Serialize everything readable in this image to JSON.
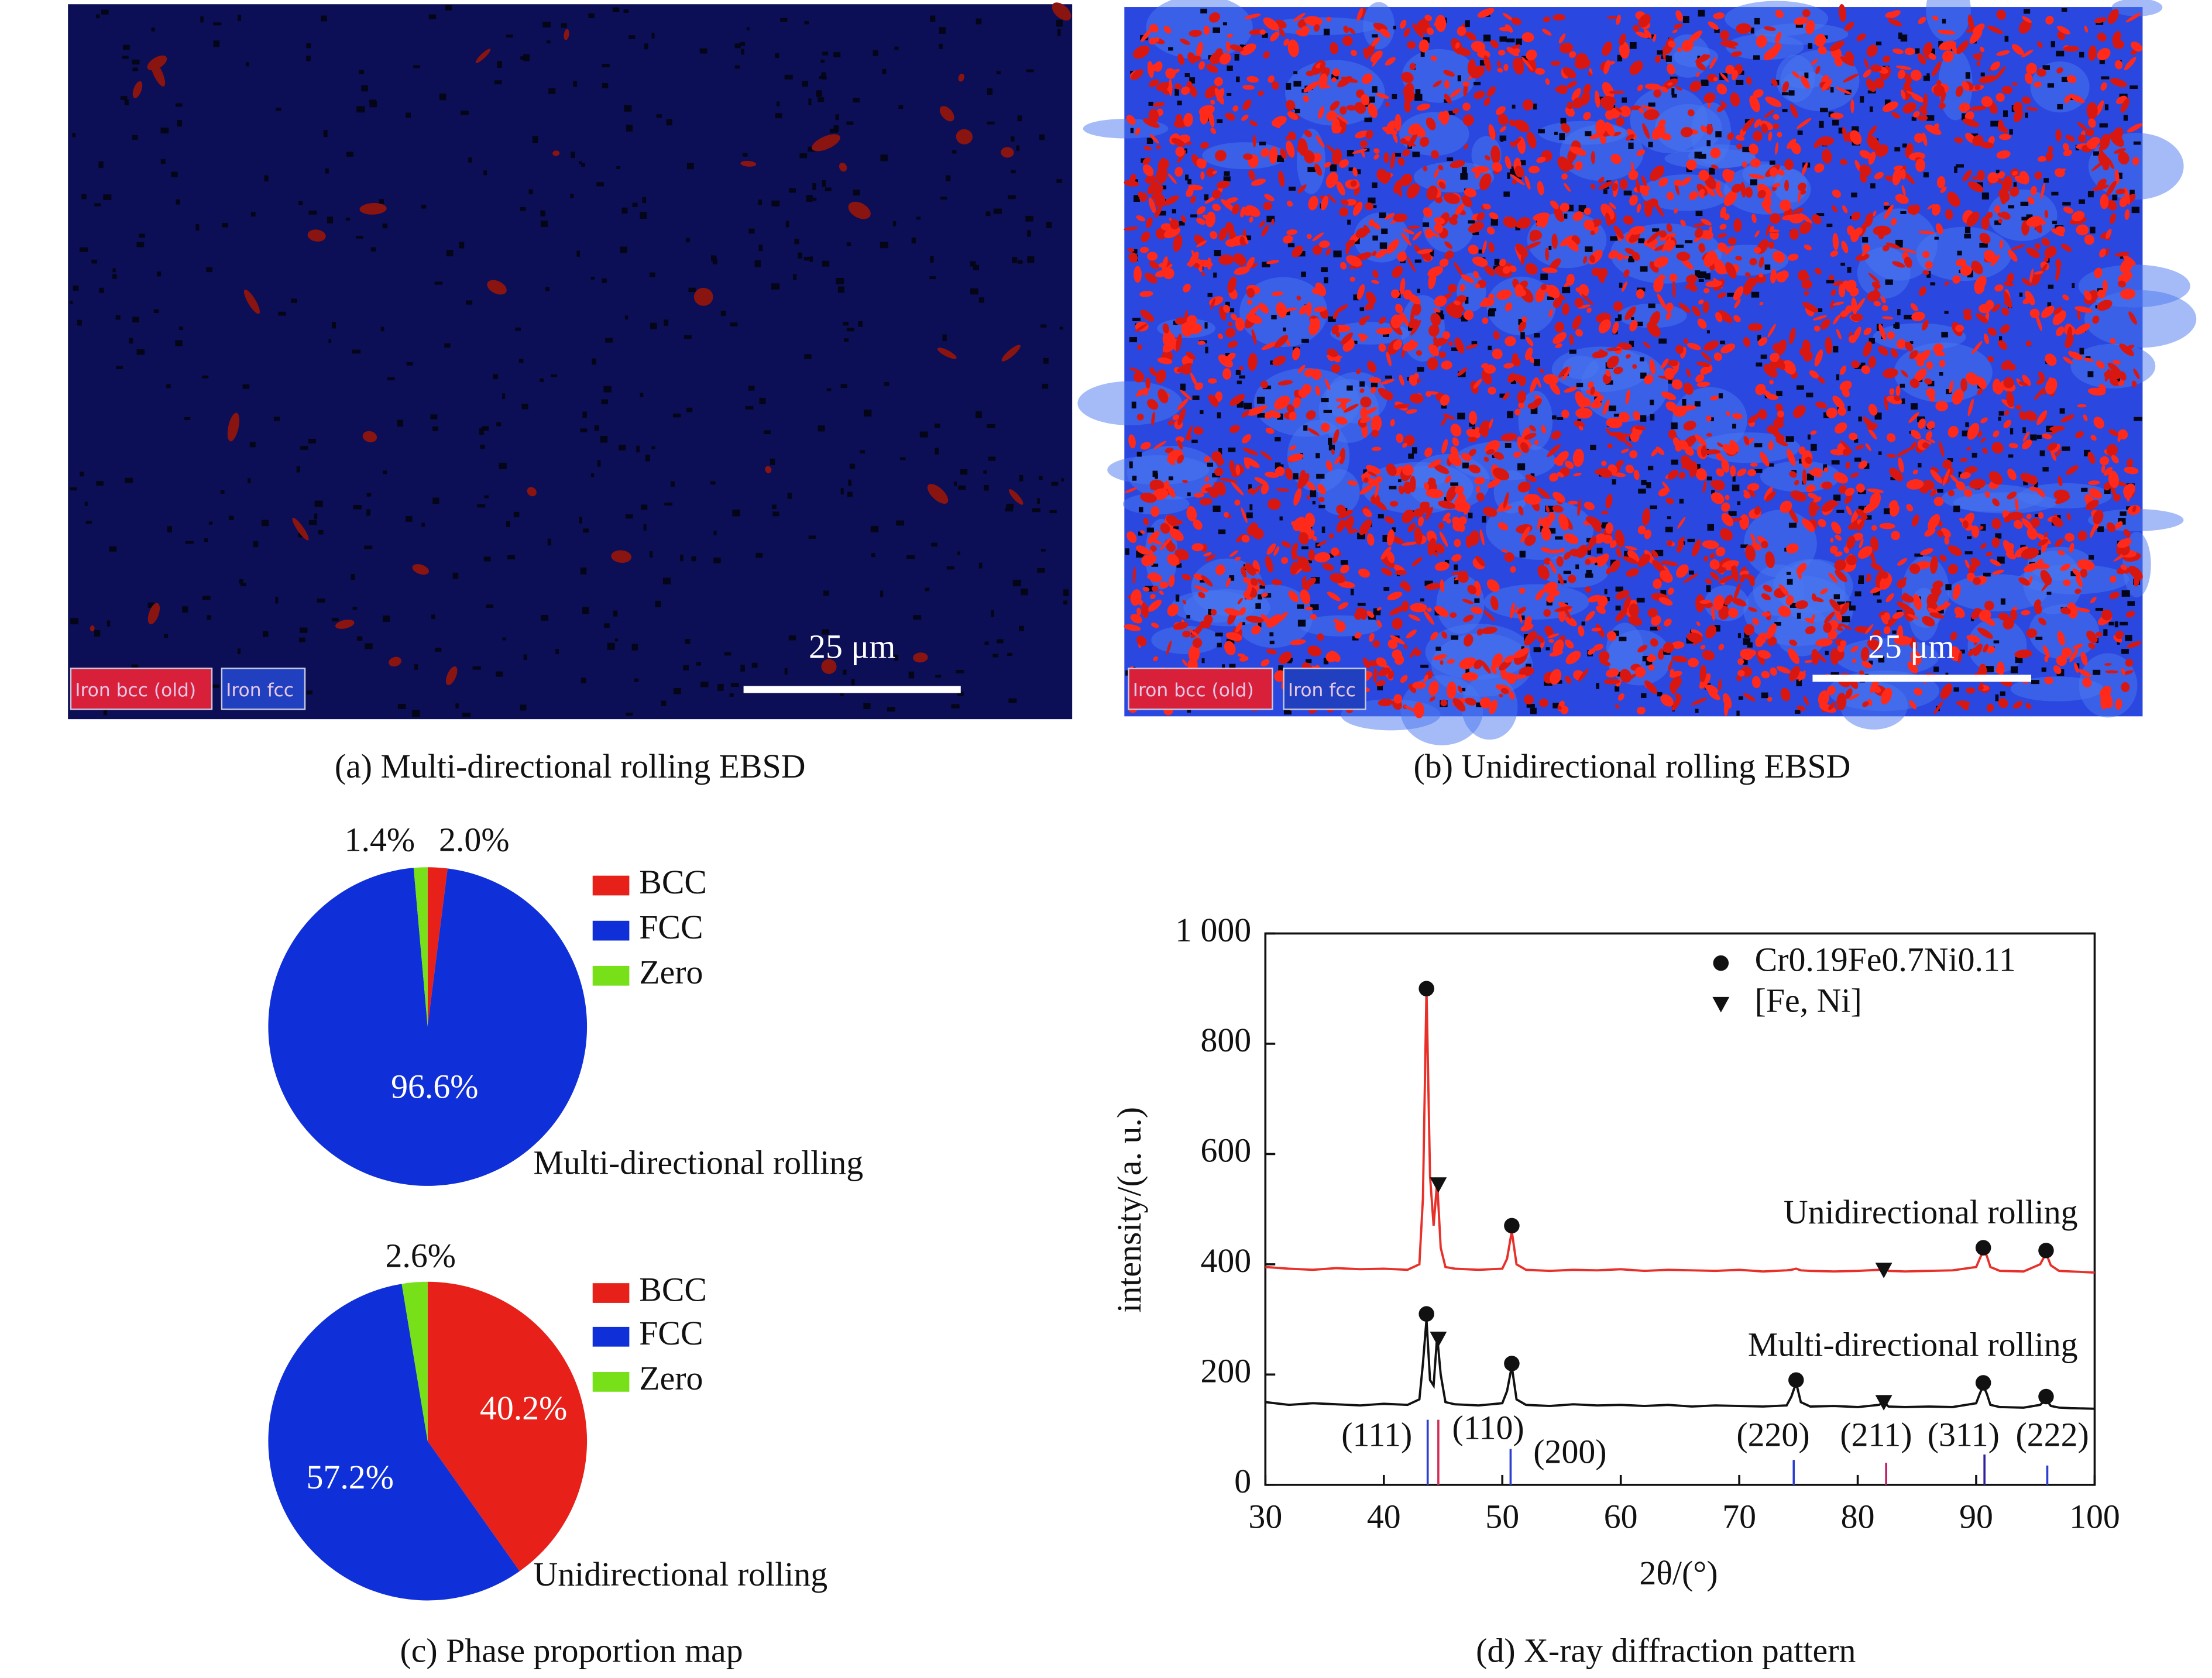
{
  "ebsd": [
    {
      "caption": "(a) Multi-directional rolling EBSD",
      "scale_bar": "25 μm",
      "legend": [
        "Iron bcc (old)",
        "Iron fcc"
      ]
    },
    {
      "caption": "(b) Unidirectional rolling EBSD",
      "scale_bar": "25 μm",
      "legend": [
        "Iron bcc (old)",
        "Iron fcc"
      ]
    }
  ],
  "phase_caption": "(c) Phase proportion map",
  "chart_data": [
    {
      "type": "pie",
      "title": "Multi-directional rolling",
      "categories": [
        "BCC",
        "FCC",
        "Zero"
      ],
      "values": [
        2.0,
        96.6,
        1.4
      ],
      "value_labels": [
        "2.0%",
        "96.6%",
        "1.4%"
      ],
      "colors": [
        "#e8201a",
        "#0f2fd8",
        "#77e019"
      ]
    },
    {
      "type": "pie",
      "title": "Unidirectional rolling",
      "categories": [
        "BCC",
        "FCC",
        "Zero"
      ],
      "values": [
        40.2,
        57.2,
        2.6
      ],
      "value_labels": [
        "40.2%",
        "57.2%",
        "2.6%"
      ],
      "colors": [
        "#e8201a",
        "#0f2fd8",
        "#77e019"
      ]
    },
    {
      "type": "line",
      "caption": "(d) X-ray diffraction pattern",
      "xlabel": "2θ/(°)",
      "ylabel": "intensity/(a. u.)",
      "xlim": [
        30,
        100
      ],
      "ylim": [
        0,
        1000
      ],
      "xticks": [
        30,
        40,
        50,
        60,
        70,
        80,
        90,
        100
      ],
      "yticks": [
        0,
        200,
        400,
        600,
        800,
        {
          "value": 1000,
          "label": "1 000"
        }
      ],
      "x": [
        30,
        32,
        34,
        36,
        38,
        40,
        42,
        43.0,
        43.3,
        43.6,
        43.9,
        44.2,
        44.5,
        44.8,
        45.2,
        46,
        48,
        50,
        50.4,
        50.8,
        51.2,
        52,
        54,
        56,
        58,
        60,
        62,
        64,
        66,
        68,
        70,
        72,
        74,
        74.4,
        74.8,
        75.2,
        76,
        78,
        80,
        81.8,
        82.2,
        82.6,
        84,
        86,
        88,
        90,
        90.3,
        90.6,
        90.9,
        91.2,
        92,
        94,
        95.4,
        95.9,
        96.3,
        97,
        98,
        100
      ],
      "series": [
        {
          "name": "Unidirectional rolling",
          "color": "#e8302a",
          "values": [
            395,
            392,
            390,
            393,
            391,
            392,
            390,
            400,
            520,
            900,
            560,
            470,
            550,
            430,
            395,
            392,
            390,
            392,
            410,
            460,
            400,
            390,
            388,
            390,
            389,
            391,
            388,
            390,
            389,
            388,
            390,
            387,
            389,
            390,
            392,
            389,
            388,
            387,
            388,
            390,
            395,
            388,
            387,
            388,
            389,
            395,
            410,
            425,
            415,
            395,
            388,
            387,
            400,
            420,
            398,
            388,
            387,
            385
          ]
        },
        {
          "name": "Multi-directional rolling",
          "color": "#111111",
          "values": [
            150,
            145,
            148,
            146,
            144,
            147,
            145,
            155,
            220,
            300,
            190,
            180,
            270,
            200,
            150,
            146,
            144,
            148,
            170,
            215,
            155,
            145,
            143,
            146,
            144,
            145,
            143,
            145,
            142,
            144,
            143,
            142,
            144,
            160,
            185,
            150,
            142,
            143,
            141,
            145,
            150,
            142,
            141,
            142,
            141,
            148,
            165,
            180,
            165,
            145,
            141,
            140,
            145,
            155,
            143,
            140,
            139,
            138
          ]
        }
      ],
      "markers": [
        {
          "name": "Cr0.19Fe0.7Ni0.11",
          "shape": "circle",
          "x": [
            43.6,
            50.8,
            90.6,
            95.9,
            43.6,
            50.8,
            74.8,
            90.6,
            95.9
          ],
          "y": [
            900,
            470,
            430,
            425,
            310,
            220,
            190,
            185,
            160
          ]
        },
        {
          "name": "[Fe, Ni]",
          "shape": "triangle",
          "x": [
            44.6,
            82.2,
            44.6,
            82.2
          ],
          "y": [
            545,
            390,
            265,
            150
          ]
        }
      ],
      "reference_lines": {
        "x": [
          43.7,
          44.6,
          50.7,
          74.6,
          82.4,
          90.7,
          96.0
        ],
        "heights": [
          118,
          118,
          65,
          45,
          40,
          55,
          35
        ],
        "colors": [
          "#2a3fd0",
          "#d0305a",
          "#2a3fd0",
          "#2a3fd0",
          "#c0206a",
          "#3020a0",
          "#2a3fd0"
        ],
        "labels": [
          "(111)",
          "(110)",
          "(200)",
          "(220)",
          "(211)",
          "(311)",
          "(222)"
        ]
      }
    }
  ]
}
